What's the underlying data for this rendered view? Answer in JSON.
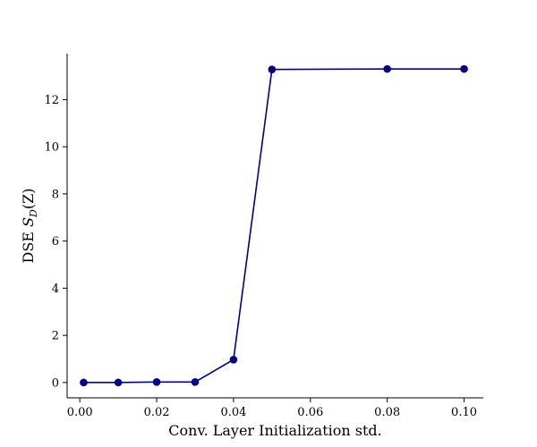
{
  "chart_data": {
    "type": "line",
    "title": "",
    "xlabel": "Conv. Layer Initialization std.",
    "ylabel": {
      "prefix": "DSE ",
      "symbol": "S",
      "subscript": "D",
      "suffix": "(Z)"
    },
    "xlim": [
      -0.0033,
      0.105
    ],
    "ylim": [
      -0.65,
      13.95
    ],
    "x_ticks": [
      0.0,
      0.02,
      0.04,
      0.06,
      0.08,
      0.1
    ],
    "x_tick_labels": [
      "0.00",
      "0.02",
      "0.04",
      "0.06",
      "0.08",
      "0.10"
    ],
    "y_ticks": [
      0,
      2,
      4,
      6,
      8,
      10,
      12
    ],
    "y_tick_labels": [
      "0",
      "2",
      "4",
      "6",
      "8",
      "10",
      "12"
    ],
    "grid": false,
    "series": [
      {
        "color": "#00008b",
        "x": [
          0.001,
          0.01,
          0.02,
          0.03,
          0.04,
          0.05,
          0.08,
          0.1
        ],
        "y": [
          0.0,
          0.0,
          0.02,
          0.02,
          0.97,
          13.28,
          13.3,
          13.3
        ]
      }
    ]
  }
}
